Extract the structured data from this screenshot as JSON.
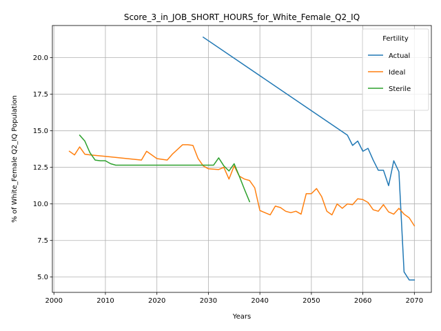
{
  "chart_data": {
    "type": "line",
    "title": "Score_3_in_JOB_SHORT_HOURS_for_White_Female_Q2_IQ",
    "xlabel": "Years",
    "ylabel": "% of White_Female Q2_IQ Population",
    "xlim": [
      1999.7,
      2073.3
    ],
    "ylim": [
      3.95,
      22.2
    ],
    "xticks": [
      2000,
      2010,
      2020,
      2030,
      2040,
      2050,
      2060,
      2070
    ],
    "yticks": [
      5.0,
      7.5,
      10.0,
      12.5,
      15.0,
      17.5,
      20.0
    ],
    "xtick_labels": [
      "2000",
      "2010",
      "2020",
      "2030",
      "2040",
      "2050",
      "2060",
      "2070"
    ],
    "ytick_labels": [
      "5.0",
      "7.5",
      "10.0",
      "12.5",
      "15.0",
      "17.5",
      "20.0"
    ],
    "grid": true,
    "legend": {
      "title": "Fertility",
      "placement": "top-right"
    },
    "series": [
      {
        "name": "Actual",
        "color": "#1f77b4",
        "x": [
          2029,
          2057,
          2058,
          2059,
          2060,
          2061,
          2062,
          2063,
          2064,
          2065,
          2066,
          2067,
          2068,
          2069,
          2070
        ],
        "y": [
          21.4,
          14.7,
          14.0,
          14.3,
          13.6,
          13.8,
          13.0,
          12.3,
          12.3,
          11.25,
          12.95,
          12.2,
          5.35,
          4.8,
          4.8
        ]
      },
      {
        "name": "Ideal",
        "color": "#ff7f0e",
        "x": [
          2003,
          2004,
          2005,
          2006,
          2007,
          2010,
          2017,
          2018,
          2020,
          2022,
          2023,
          2025,
          2026,
          2027,
          2028,
          2029,
          2030,
          2032,
          2033,
          2034,
          2035,
          2036,
          2037,
          2038,
          2039,
          2040,
          2042,
          2043,
          2044,
          2045,
          2046,
          2047,
          2048,
          2049,
          2050,
          2051,
          2052,
          2053,
          2054,
          2055,
          2056,
          2057,
          2058,
          2059,
          2060,
          2061,
          2062,
          2063,
          2064,
          2065,
          2066,
          2067,
          2068,
          2069,
          2070
        ],
        "y": [
          13.6,
          13.35,
          13.9,
          13.4,
          13.35,
          13.25,
          13.0,
          13.6,
          13.1,
          13.0,
          13.4,
          14.05,
          14.05,
          14.0,
          13.1,
          12.6,
          12.4,
          12.35,
          12.5,
          11.7,
          12.6,
          11.9,
          11.7,
          11.6,
          11.1,
          9.55,
          9.25,
          9.85,
          9.75,
          9.5,
          9.4,
          9.5,
          9.3,
          10.7,
          10.7,
          11.05,
          10.5,
          9.5,
          9.25,
          10.0,
          9.7,
          10.0,
          9.95,
          10.35,
          10.3,
          10.1,
          9.6,
          9.5,
          9.95,
          9.45,
          9.3,
          9.7,
          9.3,
          9.05,
          8.5
        ]
      },
      {
        "name": "Sterile",
        "color": "#2ca02c",
        "x": [
          2005,
          2006,
          2007,
          2008,
          2009,
          2010,
          2011,
          2012,
          2030,
          2031,
          2032,
          2033,
          2034,
          2035,
          2036,
          2037,
          2038
        ],
        "y": [
          14.7,
          14.3,
          13.5,
          13.0,
          12.95,
          12.95,
          12.75,
          12.65,
          12.65,
          12.65,
          13.15,
          12.6,
          12.25,
          12.75,
          11.9,
          11.0,
          10.15
        ]
      }
    ]
  }
}
